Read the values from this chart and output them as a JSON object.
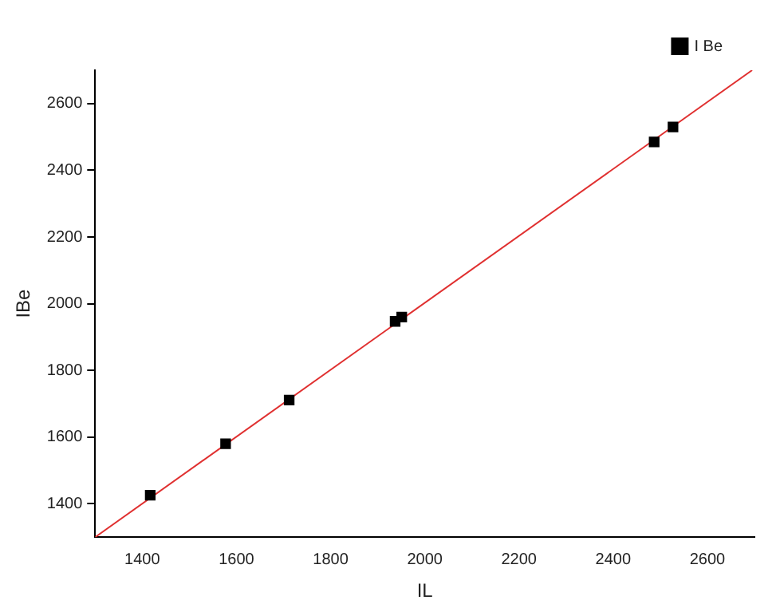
{
  "chart_data": {
    "type": "scatter",
    "xlabel": "IL",
    "ylabel": "IBe",
    "xlim": [
      1300,
      2700
    ],
    "ylim": [
      1300,
      2700
    ],
    "xticks": [
      1400,
      1600,
      1800,
      2000,
      2200,
      2400,
      2600
    ],
    "yticks": [
      1400,
      1600,
      1800,
      2000,
      2200,
      2400,
      2600
    ],
    "grid": false,
    "legend": "top right",
    "marker": "square",
    "series": [
      {
        "name": "I Be",
        "color": "#000000",
        "x": [
          1417,
          1577,
          1712,
          1937,
          1951,
          2487,
          2527
        ],
        "values": [
          1426,
          1580,
          1711,
          1947,
          1960,
          2485,
          2530
        ]
      },
      {
        "type": "line",
        "color": "#e03030",
        "x": [
          1300,
          2695
        ],
        "values": [
          1300,
          2700
        ],
        "line_style": "solid",
        "marker": "none"
      }
    ]
  }
}
